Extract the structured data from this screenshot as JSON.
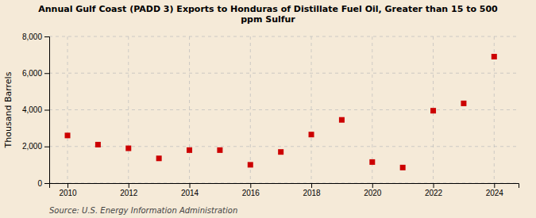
{
  "chart_data": {
    "type": "scatter",
    "title": "Annual Gulf Coast (PADD 3) Exports to Honduras of Distillate Fuel Oil, Greater than 15 to 500\nppm Sulfur",
    "ylabel": "Thousand Barrels",
    "annotations": [
      "Source: U.S. Energy Information Administration"
    ],
    "x": [
      2010,
      2011,
      2012,
      2013,
      2014,
      2015,
      2016,
      2017,
      2018,
      2019,
      2020,
      2021,
      2022,
      2023,
      2024
    ],
    "values": [
      2600,
      2100,
      1900,
      1350,
      1800,
      1800,
      1000,
      1700,
      2650,
      3450,
      1150,
      850,
      3950,
      4350,
      6900
    ],
    "color": "#cc0000",
    "marker": "square",
    "xlim": [
      2009.4,
      2024.8
    ],
    "xticks": [
      2010,
      2012,
      2014,
      2016,
      2018,
      2020,
      2022,
      2024
    ],
    "ylim": [
      0,
      8000
    ],
    "yticks": [
      0,
      {
        "value": 2000,
        "label": "2,000"
      },
      {
        "value": 4000,
        "label": "4,000"
      },
      {
        "value": 6000,
        "label": "6,000"
      },
      {
        "value": 8000,
        "label": "8,000"
      }
    ],
    "grid": true
  }
}
